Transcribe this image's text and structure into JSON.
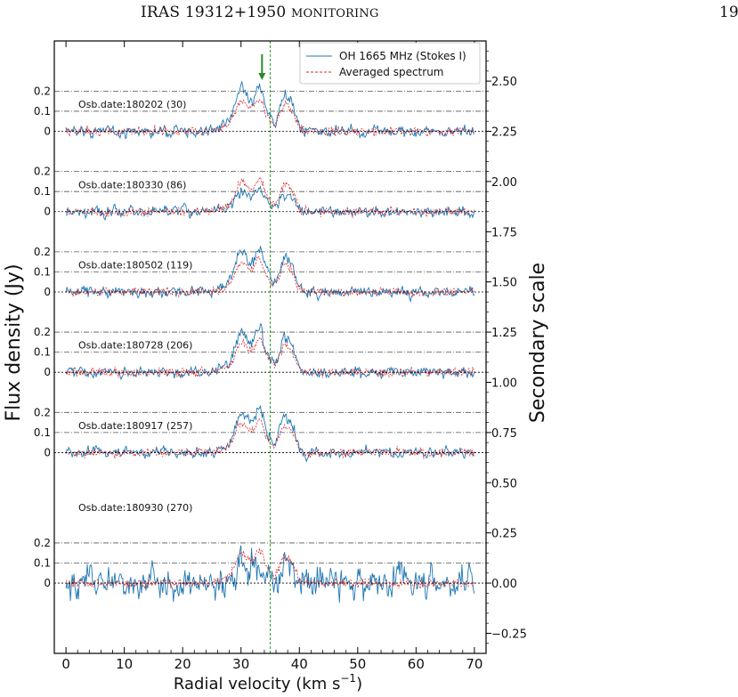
{
  "header": {
    "title_main": "IRAS 19312+1950 ",
    "title_smallcaps": "MONITORING",
    "page_number": "19"
  },
  "chart_data": {
    "type": "line",
    "xlabel_main": "Radial velocity (km s",
    "xlabel_sup": "−1",
    "xlabel_close": ")",
    "ylabel": "Flux density (Jy)",
    "ylabel_right": "Secondary scale",
    "xlim": [
      -2,
      72
    ],
    "x_ticks": [
      "0",
      "10",
      "20",
      "30",
      "40",
      "50",
      "60",
      "70"
    ],
    "ylim_right": [
      -0.35,
      2.7
    ],
    "right_ticks": [
      "2.50",
      "2.25",
      "2.00",
      "1.75",
      "1.50",
      "1.25",
      "1.00",
      "0.75",
      "0.50",
      "0.25",
      "0.00",
      "−0.25"
    ],
    "left_tick_labels": [
      "0.2",
      "0.1",
      "0"
    ],
    "vertical_line_x": 35,
    "arrow_x": 33.6,
    "legend": {
      "position": "top-right",
      "entries": [
        "OH 1665 MHz (Stokes I)",
        "Averaged spectrum"
      ]
    },
    "colors": {
      "observed": "#1f77b4",
      "averaged": "#d62728",
      "vline": "#2ca02c",
      "arrow": "#2a8a2a"
    },
    "panels": [
      {
        "label": "Osb.date:180202 (30)",
        "offset": 2.25,
        "noise": 0.035,
        "scale": 1.0
      },
      {
        "label": "Osb.date:180330 (86)",
        "offset": 1.85,
        "noise": 0.035,
        "scale": 0.5
      },
      {
        "label": "Osb.date:180502 (119)",
        "offset": 1.45,
        "noise": 0.035,
        "scale": 1.0
      },
      {
        "label": "Osb.date:180728 (206)",
        "offset": 1.05,
        "noise": 0.035,
        "scale": 1.0
      },
      {
        "label": "Osb.date:180917 (257)",
        "offset": 0.65,
        "noise": 0.035,
        "scale": 1.0
      },
      {
        "label": "Osb.date:180930 (270)",
        "offset": 0.0,
        "noise": 0.11,
        "scale": 0.4
      }
    ]
  }
}
